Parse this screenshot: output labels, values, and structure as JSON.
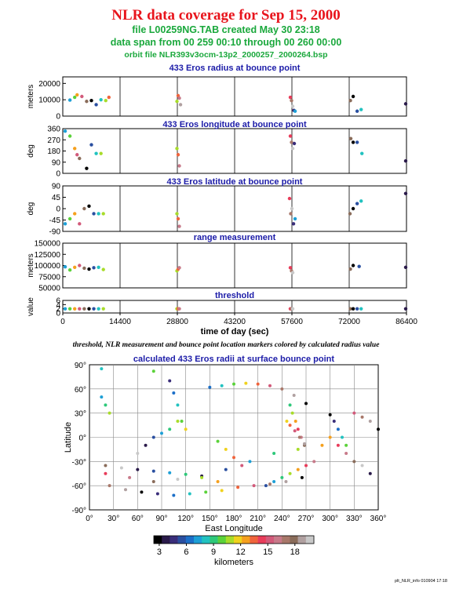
{
  "header": {
    "title": "NLR data coverage for Sep 15, 2000",
    "file_line": "file L00259NG.TAB created May 30 23:18",
    "span_line": "data span from 00 259 00:10 through 00 260 00:00",
    "orbit_line": "orbit file NLR393v3ocm-13p2_2000257_2000264.bsp"
  },
  "caption": "threshold, NLR measurement and bounce point location markers colored by calculated radius value",
  "footer": "plt_NLR_info 010904 17:18",
  "colors": {
    "title": "#e8141c",
    "subtitle": "#1aa83c",
    "panel_title": "#1c1ca8",
    "colorbar": [
      "#000000",
      "#2a1a4a",
      "#3a2e7a",
      "#2a4fa0",
      "#1c6fc8",
      "#1d9fd6",
      "#22c2c0",
      "#2ec87a",
      "#5bd23a",
      "#a8dc2a",
      "#f0d21e",
      "#f5a01e",
      "#f0643c",
      "#e83c5a",
      "#d25a7a",
      "#c87a8a",
      "#a8786a",
      "#8a6c5a",
      "#b0a0a0",
      "#c8c8c8"
    ]
  },
  "chart_data": [
    {
      "type": "scatter",
      "title": "433 Eros radius at bounce point",
      "ylabel": "meters",
      "ylim": [
        0,
        24000
      ],
      "yticks": [
        0,
        10000,
        20000
      ],
      "xlim": [
        0,
        86400
      ],
      "series": [
        {
          "x": [
            1800,
            3000,
            3600,
            4800,
            6000,
            7200,
            8400,
            9600,
            10800,
            11600
          ],
          "y": [
            9800,
            11500,
            13000,
            12000,
            9000,
            9500,
            7000,
            10000,
            9500,
            11500
          ]
        },
        {
          "x": [
            28700,
            29000,
            29300,
            29600
          ],
          "y": [
            9000,
            12500,
            11000,
            7000
          ]
        },
        {
          "x": [
            57200,
            57500,
            57800,
            58100,
            58400
          ],
          "y": [
            11500,
            9500,
            6000,
            3500,
            3000
          ]
        },
        {
          "x": [
            72300,
            73000,
            74000,
            75000
          ],
          "y": [
            9500,
            12000,
            3000,
            4000
          ]
        },
        {
          "x": [
            86200
          ],
          "y": [
            7500
          ]
        }
      ]
    },
    {
      "type": "scatter",
      "title": "433 Eros longitude at bounce point",
      "ylabel": "deg",
      "ylim": [
        0,
        360
      ],
      "yticks": [
        0,
        90,
        180,
        270,
        360
      ],
      "xlim": [
        0,
        86400
      ],
      "series": [
        {
          "x": [
            600,
            1800,
            3000,
            3600,
            4200,
            6000,
            7200,
            8400,
            9600
          ],
          "y": [
            340,
            300,
            200,
            150,
            120,
            40,
            230,
            160,
            160
          ]
        },
        {
          "x": [
            28700,
            29000,
            29300
          ],
          "y": [
            200,
            150,
            60
          ]
        },
        {
          "x": [
            57200,
            57500,
            57800,
            58200
          ],
          "y": [
            300,
            250,
            200,
            240
          ]
        },
        {
          "x": [
            72400,
            73000,
            74000,
            75200
          ],
          "y": [
            280,
            250,
            250,
            160
          ]
        },
        {
          "x": [
            86200
          ],
          "y": [
            100
          ]
        }
      ]
    },
    {
      "type": "scatter",
      "title": "433 Eros latitude at bounce point",
      "ylabel": "deg",
      "ylim": [
        -90,
        90
      ],
      "yticks": [
        -90,
        -45,
        0,
        45,
        90
      ],
      "xlim": [
        0,
        86400
      ],
      "series": [
        {
          "x": [
            600,
            1800,
            3000,
            4200,
            5400,
            6600,
            7800,
            9000,
            10200
          ],
          "y": [
            -60,
            -40,
            -20,
            -60,
            0,
            10,
            -20,
            -20,
            -20
          ]
        },
        {
          "x": [
            28700,
            29000,
            29300
          ],
          "y": [
            -20,
            -40,
            -70
          ]
        },
        {
          "x": [
            57000,
            57300,
            57600,
            58000,
            58400
          ],
          "y": [
            40,
            -20,
            0,
            -60,
            -40
          ]
        },
        {
          "x": [
            72200,
            73000,
            74000,
            75000
          ],
          "y": [
            -20,
            0,
            20,
            30
          ]
        },
        {
          "x": [
            86200
          ],
          "y": [
            60
          ]
        }
      ]
    },
    {
      "type": "scatter",
      "title": "range measurement",
      "ylabel": "meters",
      "ylim": [
        50000,
        150000
      ],
      "yticks": [
        50000,
        75000,
        100000,
        125000,
        150000
      ],
      "xlim": [
        0,
        86400
      ],
      "series": [
        {
          "x": [
            600,
            1800,
            3000,
            4200,
            5400,
            6600,
            7800,
            9000,
            10200
          ],
          "y": [
            97000,
            90000,
            96000,
            100000,
            94000,
            92000,
            95000,
            96000,
            91000
          ]
        },
        {
          "x": [
            28700,
            29000,
            29300
          ],
          "y": [
            88000,
            92000,
            95000
          ]
        },
        {
          "x": [
            57200,
            57500,
            57800
          ],
          "y": [
            95000,
            88000,
            84000
          ]
        },
        {
          "x": [
            72300,
            73000,
            74500
          ],
          "y": [
            92000,
            100000,
            98000
          ]
        },
        {
          "x": [
            86200
          ],
          "y": [
            96000
          ]
        }
      ]
    },
    {
      "type": "scatter",
      "title": "threshold",
      "ylabel": "value",
      "ylim": [
        0,
        6
      ],
      "yticks": [
        0,
        2,
        4,
        6
      ],
      "xlim": [
        0,
        86400
      ],
      "xticks": [
        0,
        14400,
        28800,
        43200,
        57600,
        72000,
        86400
      ],
      "xlabel": "time of day (sec)",
      "series": [
        {
          "x": [
            600,
            1800,
            3000,
            4200,
            5400,
            6600,
            7800,
            9000,
            10200
          ],
          "y": [
            2,
            2,
            2,
            2,
            2,
            2,
            2,
            2,
            2
          ]
        },
        {
          "x": [
            28700,
            29000,
            29300
          ],
          "y": [
            2,
            2,
            2
          ]
        },
        {
          "x": [
            57200,
            57500,
            57800
          ],
          "y": [
            2,
            2,
            2
          ]
        },
        {
          "x": [
            72300,
            73000,
            74000,
            75000
          ],
          "y": [
            2,
            2,
            2,
            2
          ]
        },
        {
          "x": [
            86200
          ],
          "y": [
            2
          ]
        }
      ]
    },
    {
      "type": "scatter",
      "title": "calculated 433 Eros radii at surface bounce point",
      "xlabel": "East Longitude",
      "ylabel": "Latitude",
      "xlim": [
        0,
        360
      ],
      "ylim": [
        -90,
        90
      ],
      "xticks": [
        0,
        30,
        60,
        90,
        120,
        150,
        180,
        210,
        240,
        270,
        300,
        330,
        360
      ],
      "yticks": [
        -90,
        -60,
        -30,
        0,
        30,
        60,
        90
      ],
      "series": [
        {
          "x": [
            150,
            165,
            180,
            195,
            210,
            225,
            240,
            255,
            270
          ],
          "y": [
            62,
            64,
            66,
            67,
            66,
            64,
            60,
            52,
            42
          ]
        },
        {
          "x": [
            250,
            253,
            257,
            260,
            264,
            268
          ],
          "y": [
            40,
            30,
            20,
            10,
            0,
            -10
          ]
        },
        {
          "x": [
            246,
            250,
            256,
            262,
            268
          ],
          "y": [
            20,
            15,
            8,
            0,
            -8
          ]
        },
        {
          "x": [
            20,
            50,
            80,
            110,
            140,
            170,
            200,
            230,
            260,
            290
          ],
          "y": [
            -45,
            -50,
            -55,
            -52,
            -48,
            -40,
            -30,
            -20,
            -15,
            -10
          ]
        },
        {
          "x": [
            25,
            45,
            65,
            85,
            105,
            125,
            145,
            165,
            185,
            205,
            225,
            245,
            265
          ],
          "y": [
            -60,
            -65,
            -68,
            -70,
            -72,
            -70,
            -68,
            -66,
            -62,
            -60,
            -58,
            -55,
            -50
          ]
        },
        {
          "x": [
            60,
            70,
            80,
            90,
            100,
            110
          ],
          "y": [
            -20,
            -10,
            0,
            5,
            10,
            20
          ]
        },
        {
          "x": [
            100,
            105,
            110,
            115,
            120
          ],
          "y": [
            70,
            55,
            40,
            20,
            10
          ]
        },
        {
          "x": [
            15,
            20,
            25
          ],
          "y": [
            50,
            40,
            30
          ]
        },
        {
          "x": [
            160,
            170,
            180,
            190
          ],
          "y": [
            -5,
            -15,
            -25,
            -35
          ]
        },
        {
          "x": [
            300,
            310,
            320,
            330,
            340,
            350
          ],
          "y": [
            0,
            -10,
            -20,
            -30,
            -35,
            -45
          ]
        },
        {
          "x": [
            330,
            340,
            350,
            360
          ],
          "y": [
            30,
            25,
            20,
            10
          ]
        },
        {
          "x": [
            20,
            40,
            60,
            80,
            100,
            120,
            140,
            160
          ],
          "y": [
            -35,
            -38,
            -40,
            -42,
            -44,
            -46,
            -50,
            -55
          ]
        },
        {
          "x": [
            300,
            305,
            310,
            315,
            320
          ],
          "y": [
            28,
            20,
            10,
            0,
            -10
          ]
        },
        {
          "x": [
            220,
            230,
            240,
            250,
            260,
            270,
            280
          ],
          "y": [
            -60,
            -55,
            -50,
            -45,
            -40,
            -35,
            -30
          ]
        },
        {
          "x": [
            15,
            80
          ],
          "y": [
            85,
            82
          ]
        }
      ]
    },
    {
      "type": "colorbar",
      "ticks": [
        3,
        6,
        9,
        12,
        15,
        18
      ],
      "range": [
        2.4,
        20.1
      ],
      "label": "kilometers"
    }
  ]
}
